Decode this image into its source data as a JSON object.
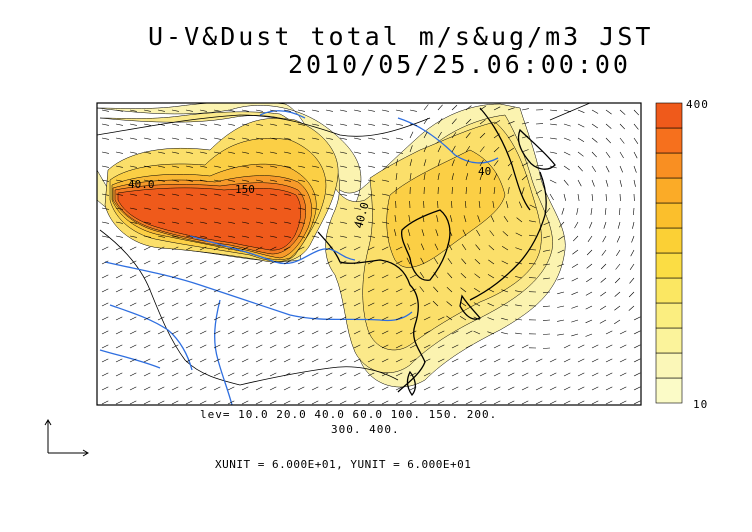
{
  "title": {
    "line1": "U-V&Dust total m/s&ug/m3 JST",
    "line2": "2010/05/25.06:00:00"
  },
  "colorbar": {
    "max_label": "400",
    "min_label": "10",
    "colors": [
      "#fbfbc7",
      "#fbf7b8",
      "#fbf39b",
      "#fbee80",
      "#fbe762",
      "#fbdd44",
      "#fbd035",
      "#fbbf2c",
      "#fbab27",
      "#f98f22",
      "#f6701d",
      "#ef5a1b"
    ]
  },
  "contour_colors": {
    "c10": "#fbf3b0",
    "c20": "#fbe98a",
    "c40": "#fbdf6a",
    "c60": "#fbcf45",
    "c100": "#f9b934",
    "c150": "#f79a2a",
    "c200": "#f27a22",
    "c400": "#ef5a1b",
    "rivers": "#2f6fe0"
  },
  "contour_labels": [
    "40.0",
    "150",
    "40.0",
    "40"
  ],
  "levels_line1": "lev= 10.0 20.0 40.0 60.0 100. 150. 200.",
  "levels_line2": "300. 400.",
  "units_line": "XUNIT = 6.000E+01, YUNIT = 6.000E+01"
}
